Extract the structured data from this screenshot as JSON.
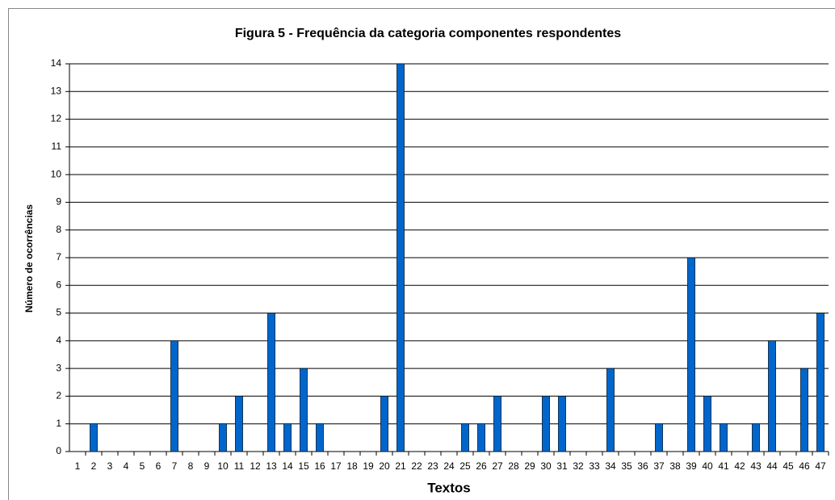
{
  "chart_data": {
    "type": "bar",
    "title": "Figura 5 - Frequência da categoria componentes respondentes",
    "x_label": "Textos",
    "y_label": "Número de ocorrências",
    "categories": [
      "1",
      "2",
      "3",
      "4",
      "5",
      "6",
      "7",
      "8",
      "9",
      "10",
      "11",
      "12",
      "13",
      "14",
      "15",
      "16",
      "17",
      "18",
      "19",
      "20",
      "21",
      "22",
      "23",
      "24",
      "25",
      "26",
      "27",
      "28",
      "29",
      "30",
      "31",
      "32",
      "33",
      "34",
      "35",
      "36",
      "37",
      "38",
      "39",
      "40",
      "41",
      "42",
      "43",
      "44",
      "45",
      "46",
      "47"
    ],
    "values": [
      0,
      1,
      0,
      0,
      0,
      0,
      4,
      0,
      0,
      1,
      2,
      0,
      5,
      1,
      3,
      1,
      0,
      0,
      0,
      2,
      14,
      0,
      0,
      0,
      1,
      1,
      2,
      0,
      0,
      2,
      2,
      0,
      0,
      3,
      0,
      0,
      1,
      0,
      7,
      2,
      1,
      0,
      1,
      4,
      0,
      3,
      5
    ],
    "color": "#0066cc",
    "ylim": [
      0,
      14
    ],
    "yticks": [
      0,
      1,
      2,
      3,
      4,
      5,
      6,
      7,
      8,
      9,
      10,
      11,
      12,
      13,
      14
    ],
    "grid": true
  }
}
